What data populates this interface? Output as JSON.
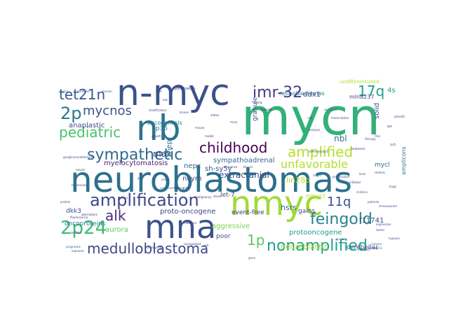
{
  "words": [
    {
      "text": "mycn",
      "color": "#33b07a"
    },
    {
      "text": "neuroblastomas",
      "color": "#2d708e"
    },
    {
      "text": "n-myc",
      "color": "#3b528b"
    },
    {
      "text": "nb",
      "color": "#2c728e"
    },
    {
      "text": "mna",
      "color": "#3b528b"
    },
    {
      "text": "nmyc",
      "color": "#a0da39"
    },
    {
      "text": "amplification",
      "color": "#3e4989"
    },
    {
      "text": "sympathetic",
      "color": "#31688e"
    },
    {
      "text": "pediatric",
      "color": "#4ac16d"
    },
    {
      "text": "childhood",
      "color": "#440154"
    },
    {
      "text": "amplified",
      "color": "#b8de29"
    },
    {
      "text": "nonamplified",
      "color": "#1fa188"
    },
    {
      "text": "feingold",
      "color": "#26828e"
    },
    {
      "text": "medulloblastoma",
      "color": "#3e4a89"
    },
    {
      "text": "2p24",
      "color": "#3dbc74"
    },
    {
      "text": "imr-32",
      "color": "#433e85"
    },
    {
      "text": "tet21n",
      "color": "#38588c"
    },
    {
      "text": "2p",
      "color": "#2a788e"
    },
    {
      "text": "mycnos",
      "color": "#3b528b"
    },
    {
      "text": "17q",
      "color": "#1f9e89"
    },
    {
      "text": "alk",
      "color": "#472d7b"
    },
    {
      "text": "1p",
      "color": "#58c765"
    },
    {
      "text": "11q",
      "color": "#3b528b"
    },
    {
      "text": "unfavorable",
      "color": "#b5de2b"
    },
    {
      "text": "extracranial",
      "color": "#3e4989"
    },
    {
      "text": "myelocytomatosis",
      "color": "#482475"
    },
    {
      "text": "sympathoadrenal",
      "color": "#31688e"
    },
    {
      "text": "anaplastic",
      "color": "#3e4a89"
    },
    {
      "text": "oncoproteins",
      "color": "#2a788e"
    },
    {
      "text": "proto-oncogene",
      "color": "#404688"
    },
    {
      "text": "neuroblastic",
      "color": "#addc30"
    },
    {
      "text": "aggressive",
      "color": "#7ad151"
    },
    {
      "text": "protooncogene",
      "color": "#1f9e89"
    },
    {
      "text": "cerebellar",
      "color": "#3b528b"
    },
    {
      "text": "sh-sy5y",
      "color": "#39568c"
    },
    {
      "text": "lin28b",
      "color": "#b5de2b"
    },
    {
      "text": "retinoblastomas",
      "color": "#2c728e"
    },
    {
      "text": "mln8237",
      "color": "#414487"
    },
    {
      "text": "ddx1",
      "color": "#3e4989"
    },
    {
      "text": "nbl",
      "color": "#2d708e"
    },
    {
      "text": "4s",
      "color": "#1f9e89"
    },
    {
      "text": "solid",
      "color": "#3b528b"
    },
    {
      "text": "granule",
      "color": "#3b528b"
    },
    {
      "text": "max",
      "color": "#3e4989"
    },
    {
      "text": "nepc",
      "color": "#31688e"
    },
    {
      "text": "ncym",
      "color": "#3e4989"
    },
    {
      "text": "shep",
      "color": "#2a788e"
    },
    {
      "text": "1p36",
      "color": "#2a788e"
    },
    {
      "text": "f11741",
      "color": "#3e4989"
    },
    {
      "text": "hsrs",
      "color": "#31688e"
    },
    {
      "text": "gains",
      "color": "#404688"
    },
    {
      "text": "event-free",
      "color": "#46327e"
    },
    {
      "text": "let-7",
      "color": "#3e4989"
    },
    {
      "text": "poor",
      "color": "#3b528b"
    },
    {
      "text": "aurora",
      "color": "#5ec962"
    },
    {
      "text": "dkk3",
      "color": "#3e4989"
    },
    {
      "text": "nmycl",
      "color": "#b5de2b"
    },
    {
      "text": "oncogenesis",
      "color": "#2a788e"
    },
    {
      "text": "undifferentiated",
      "color": "#b5de2b"
    },
    {
      "text": "hybridization",
      "color": "#46327e"
    },
    {
      "text": "copies",
      "color": "#31688e"
    },
    {
      "text": "germline",
      "color": "#3e4989"
    },
    {
      "text": "mycl",
      "color": "#31688e"
    },
    {
      "text": "amplicons",
      "color": "#2a788e"
    },
    {
      "text": "stratification",
      "color": "#3e4989"
    },
    {
      "text": "malignancy",
      "color": "#46327e"
    },
    {
      "text": "driver",
      "color": "#3e4989"
    },
    {
      "text": "fluorescence",
      "color": "#46327e"
    },
    {
      "text": "upregulated",
      "color": "#3b528b"
    },
    {
      "text": "prognostic",
      "color": "#31688e"
    },
    {
      "text": "outcome",
      "color": "#3e4989"
    },
    {
      "text": "compact",
      "color": "#3e4989"
    },
    {
      "text": "tumors",
      "color": "#31688e"
    },
    {
      "text": "aberrations",
      "color": "#46327e"
    },
    {
      "text": "embryonal",
      "color": "#3e4989"
    },
    {
      "text": "hypoxia",
      "color": "#3b528b"
    },
    {
      "text": "dickkopf-3",
      "color": "#3e4989"
    },
    {
      "text": "neural",
      "color": "#46327e"
    },
    {
      "text": "crest",
      "color": "#3e4989"
    },
    {
      "text": "apoptosis",
      "color": "#31688e"
    },
    {
      "text": "transcription",
      "color": "#3e4989"
    },
    {
      "text": "retinoic",
      "color": "#46327e"
    },
    {
      "text": "ganglioneuroblastoma",
      "color": "#3b528b"
    },
    {
      "text": "telomerase",
      "color": "#3e4989"
    },
    {
      "text": "copy-number",
      "color": "#31688e"
    },
    {
      "text": "xenograft",
      "color": "#46327e"
    },
    {
      "text": "chromosome",
      "color": "#3e4989"
    },
    {
      "text": "deletion",
      "color": "#3b528b"
    },
    {
      "text": "ploidy",
      "color": "#3e4989"
    },
    {
      "text": "survival",
      "color": "#46327e"
    },
    {
      "text": "risk",
      "color": "#3e4989"
    },
    {
      "text": "stage",
      "color": "#31688e"
    },
    {
      "text": "trka",
      "color": "#3b528b"
    },
    {
      "text": "lsd1",
      "color": "#3e4989"
    },
    {
      "text": "bet",
      "color": "#46327e"
    },
    {
      "text": "phox2b",
      "color": "#3e4989"
    },
    {
      "text": "gd2",
      "color": "#31688e"
    },
    {
      "text": "kinase",
      "color": "#3b528b"
    },
    {
      "text": "clinical",
      "color": "#3e4989"
    },
    {
      "text": "cell",
      "color": "#46327e"
    },
    {
      "text": "lines",
      "color": "#3e4989"
    },
    {
      "text": "human",
      "color": "#31688e"
    },
    {
      "text": "high",
      "color": "#3b528b"
    },
    {
      "text": "low",
      "color": "#3e4989"
    },
    {
      "text": "status",
      "color": "#46327e"
    },
    {
      "text": "analysis",
      "color": "#3e4989"
    },
    {
      "text": "target",
      "color": "#31688e"
    },
    {
      "text": "therapy",
      "color": "#3b528b"
    },
    {
      "text": "protein",
      "color": "#3e4989"
    },
    {
      "text": "genes",
      "color": "#46327e"
    },
    {
      "text": "mutation",
      "color": "#3e4989"
    },
    {
      "text": "children",
      "color": "#31688e"
    },
    {
      "text": "patients",
      "color": "#3b528b"
    },
    {
      "text": "expression",
      "color": "#3e4989"
    },
    {
      "text": "tumor",
      "color": "#46327e"
    },
    {
      "text": "cancer",
      "color": "#3e4989"
    },
    {
      "text": "gene",
      "color": "#31688e"
    },
    {
      "text": "mrna",
      "color": "#3b528b"
    },
    {
      "text": "mouse",
      "color": "#3e4989"
    },
    {
      "text": "model",
      "color": "#46327e"
    },
    {
      "text": "growth",
      "color": "#3e4989"
    },
    {
      "text": "differentiation",
      "color": "#31688e"
    },
    {
      "text": "proliferation",
      "color": "#3b528b"
    },
    {
      "text": "inhibitor",
      "color": "#3e4989"
    },
    {
      "text": "treatment",
      "color": "#46327e"
    },
    {
      "text": "response",
      "color": "#3e4989"
    }
  ]
}
